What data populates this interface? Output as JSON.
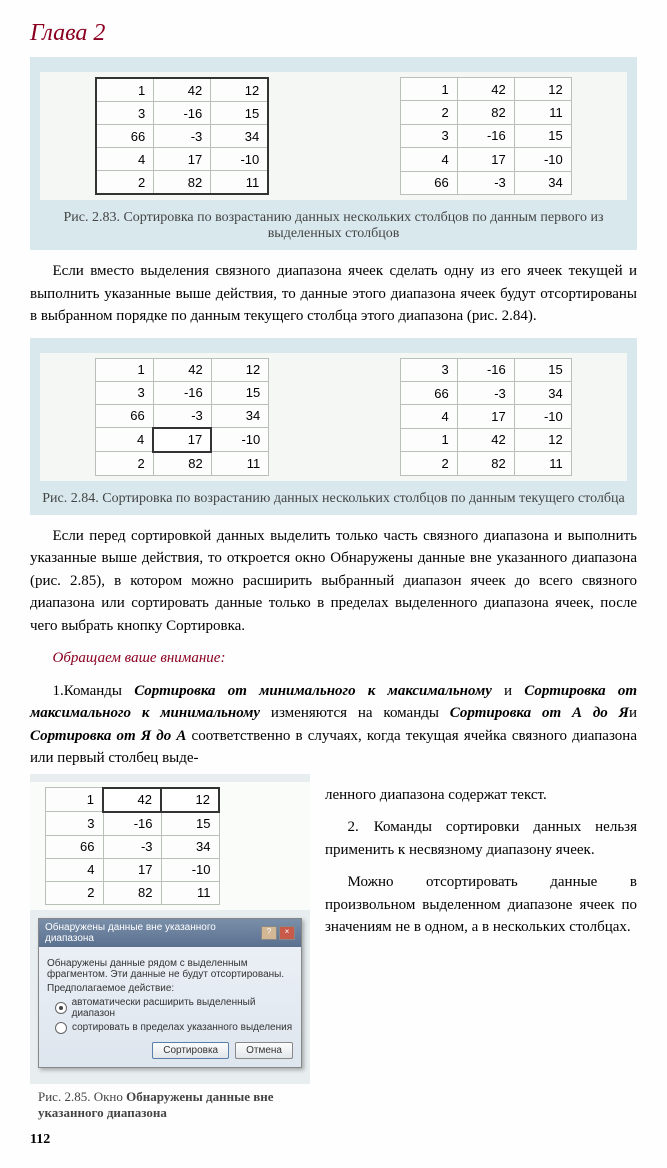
{
  "chapter": "Глава 2",
  "fig283": {
    "left_rows": [
      [
        "1",
        "42",
        "12"
      ],
      [
        "3",
        "-16",
        "15"
      ],
      [
        "66",
        "-3",
        "34"
      ],
      [
        "4",
        "17",
        "-10"
      ],
      [
        "2",
        "82",
        "11"
      ]
    ],
    "right_rows": [
      [
        "1",
        "42",
        "12"
      ],
      [
        "2",
        "82",
        "11"
      ],
      [
        "3",
        "-16",
        "15"
      ],
      [
        "4",
        "17",
        "-10"
      ],
      [
        "66",
        "-3",
        "34"
      ]
    ],
    "caption": "Рис. 2.83. Сортировка по возрастанию данных нескольких столбцов по данным первого из выделенных столбцов"
  },
  "para1": "Если вместо выделения связного диапазона ячеек сделать одну из его ячеек текущей и выполнить указанные выше действия, то данные этого диапазона ячеек будут отсортированы в выбранном порядке по данным текущего столбца этого диапазона (рис. 2.84).",
  "fig284": {
    "left_rows": [
      [
        "1",
        "42",
        "12"
      ],
      [
        "3",
        "-16",
        "15"
      ],
      [
        "66",
        "-3",
        "34"
      ],
      [
        "4",
        "17",
        "-10"
      ],
      [
        "2",
        "82",
        "11"
      ]
    ],
    "right_rows": [
      [
        "3",
        "-16",
        "15"
      ],
      [
        "66",
        "-3",
        "34"
      ],
      [
        "4",
        "17",
        "-10"
      ],
      [
        "1",
        "42",
        "12"
      ],
      [
        "2",
        "82",
        "11"
      ]
    ],
    "caption": "Рис. 2.84. Сортировка  по возрастанию данных нескольких столбцов по данным текущего столбца"
  },
  "para2": "Если перед сортировкой данных выделить только часть связного диапазона и выполнить указанные выше действия, то откроется окно Обнаружены данные вне указанного диапазона (рис. 2.85), в котором можно расширить выбранный диапазон ячеек до всего связного диапазона или сортировать данные только в пределах выделенного диапазона ячеек, после чего выбрать кнопку Сортировка.",
  "attention": "Обращаем ваше внимание:",
  "item1_pre": "1.Команды ",
  "item1_b1": "Сортировка от минимального к максимальному",
  "item1_mid1": " и ",
  "item1_b2": "Сортировка от максимального к минимальному",
  "item1_mid2": " изменяются на команды ",
  "item1_b3": "Сортировка от А до Я",
  "item1_mid3": "и ",
  "item1_b4": "Сортировка от Я до А",
  "item1_end": " соответственно в случаях, когда текущая ячейка связного диапазона или первый столбец выде-",
  "item1_cont": "ленного диапазона содержат текст.",
  "item2": "2. Команды сортировки данных нельзя применить к несвязному диапазону ячеек.",
  "para3": "Можно отсортировать данные в произвольном выделенном диапазоне ячеек по значениям не в одном, а в нескольких столбцах.",
  "fig285": {
    "mini_rows": [
      [
        "1",
        "42",
        "12"
      ],
      [
        "3",
        "-16",
        "15"
      ],
      [
        "66",
        "-3",
        "34"
      ],
      [
        "4",
        "17",
        "-10"
      ],
      [
        "2",
        "82",
        "11"
      ]
    ],
    "dialog_title": "Обнаружены данные вне указанного диапазона",
    "dialog_text1": "Обнаружены данные рядом с выделенным фрагментом. Эти данные не будут отсортированы.",
    "dialog_text2": "Предполагаемое действие:",
    "radio1": "автоматически расширить выделенный диапазон",
    "radio2": "сортировать в пределах указанного выделения",
    "btn_sort": "Сортировка",
    "btn_cancel": "Отмена",
    "caption_pre": "Рис. 2.85. Окно ",
    "caption_bold": "Обнаружены данные вне указанного диапазона"
  },
  "page_number": "112"
}
